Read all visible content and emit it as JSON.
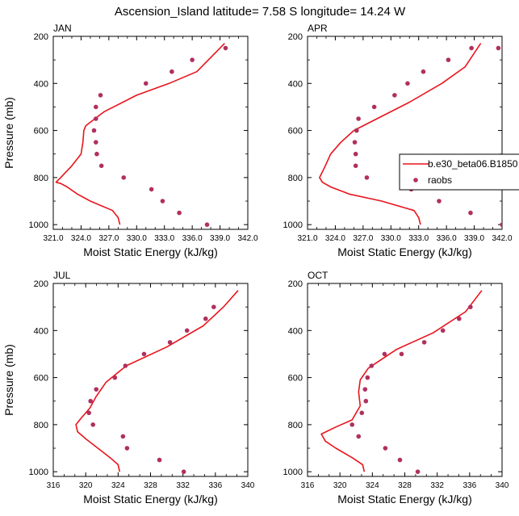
{
  "title": "Ascension_Island  latitude= 7.58 S longitude= 14.24 W",
  "chart_data": [
    {
      "type": "line",
      "panel": "JAN",
      "xlabel": "Moist Static Energy (kJ/kg)",
      "ylabel": "Pressure (mb)",
      "xlim": [
        321,
        342
      ],
      "ylim": [
        1020,
        200
      ],
      "xticks": [
        "321.0",
        "324.0",
        "327.0",
        "330.0",
        "333.0",
        "336.0",
        "339.0",
        "342.0"
      ],
      "yticks": [
        "200",
        "400",
        "600",
        "800",
        "1000"
      ],
      "series": [
        {
          "name": "b.e30_beta06.B1850",
          "kind": "line",
          "color": "#e8141c",
          "x": [
            328.2,
            328.0,
            327.4,
            325.0,
            323.6,
            322.5,
            321.8,
            321.3,
            321.8,
            323.0,
            324.0,
            324.2,
            324.3,
            324.5,
            326.5,
            330.0,
            333.5,
            336.5,
            338.5,
            339.5
          ],
          "y": [
            1000,
            970,
            940,
            900,
            870,
            840,
            825,
            820,
            800,
            750,
            700,
            650,
            600,
            580,
            520,
            450,
            400,
            350,
            270,
            230
          ]
        },
        {
          "name": "raobs",
          "kind": "scatter",
          "color": "#b03060",
          "x": [
            337.6,
            334.6,
            332.8,
            331.6,
            328.6,
            326.2,
            325.7,
            325.6,
            325.4,
            325.6,
            325.6,
            326.1,
            331.0,
            333.8,
            336.0,
            339.6
          ],
          "y": [
            1000,
            950,
            900,
            850,
            800,
            750,
            700,
            650,
            600,
            550,
            500,
            450,
            400,
            350,
            300,
            250
          ]
        }
      ]
    },
    {
      "type": "line",
      "panel": "APR",
      "xlabel": "Moist Static Energy (kJ/kg)",
      "ylabel": "",
      "xlim": [
        321,
        342
      ],
      "ylim": [
        1020,
        200
      ],
      "xticks": [
        "321.0",
        "324.0",
        "327.0",
        "330.0",
        "333.0",
        "336.0",
        "339.0",
        "342.0"
      ],
      "yticks": [
        "200",
        "400",
        "600",
        "800",
        "1000"
      ],
      "legend": {
        "placement": "right",
        "entries": [
          "b.e30_beta06.B1850",
          "raobs"
        ]
      },
      "series": [
        {
          "name": "b.e30_beta06.B1850",
          "kind": "line",
          "color": "#e8141c",
          "x": [
            333.2,
            333.0,
            332.5,
            329.0,
            325.5,
            323.5,
            322.6,
            322.3,
            322.8,
            323.5,
            324.6,
            326.0,
            328.5,
            332.0,
            335.5,
            338.0,
            339.7
          ],
          "y": [
            1000,
            970,
            940,
            900,
            870,
            840,
            820,
            800,
            760,
            700,
            650,
            600,
            550,
            480,
            400,
            330,
            230
          ]
        },
        {
          "name": "raobs",
          "kind": "scatter",
          "color": "#b03060",
          "x": [
            342.0,
            338.6,
            335.2,
            332.2,
            327.4,
            326.2,
            326.2,
            326.1,
            326.3,
            326.5,
            328.2,
            330.4,
            331.8,
            333.5,
            336.2,
            338.7,
            341.6
          ],
          "y": [
            1000,
            950,
            900,
            850,
            800,
            750,
            700,
            650,
            600,
            550,
            500,
            450,
            400,
            350,
            300,
            250,
            250
          ]
        }
      ]
    },
    {
      "type": "line",
      "panel": "JUL",
      "xlabel": "Moist Static Energy (kJ/kg)",
      "ylabel": "Pressure (mb)",
      "xlim": [
        316,
        340
      ],
      "ylim": [
        1020,
        200
      ],
      "xticks": [
        "316",
        "320",
        "324",
        "328",
        "332",
        "336",
        "340"
      ],
      "yticks": [
        "200",
        "400",
        "600",
        "800",
        "1000"
      ],
      "series": [
        {
          "name": "b.e30_beta06.B1850",
          "kind": "line",
          "color": "#e8141c",
          "x": [
            324.2,
            324.0,
            323.0,
            321.5,
            320.0,
            319.0,
            318.8,
            319.5,
            320.5,
            321.3,
            322.5,
            325.0,
            330.0,
            334.5,
            337.0,
            338.8
          ],
          "y": [
            1000,
            970,
            940,
            900,
            860,
            830,
            800,
            770,
            730,
            680,
            620,
            550,
            470,
            380,
            300,
            230
          ]
        },
        {
          "name": "raobs",
          "kind": "scatter",
          "color": "#b03060",
          "x": [
            332.1,
            329.1,
            325.1,
            324.6,
            320.9,
            320.4,
            320.6,
            321.3,
            323.6,
            324.9,
            327.2,
            330.4,
            332.5,
            334.8,
            335.8
          ],
          "y": [
            1000,
            950,
            900,
            850,
            800,
            750,
            700,
            650,
            600,
            550,
            500,
            450,
            400,
            350,
            300
          ]
        }
      ]
    },
    {
      "type": "line",
      "panel": "OCT",
      "xlabel": "Moist Static Energy (kJ/kg)",
      "ylabel": "",
      "xlim": [
        316,
        340
      ],
      "ylim": [
        1020,
        200
      ],
      "xticks": [
        "316",
        "320",
        "324",
        "328",
        "332",
        "336",
        "340"
      ],
      "yticks": [
        "200",
        "400",
        "600",
        "800",
        "1000"
      ],
      "series": [
        {
          "name": "b.e30_beta06.B1850",
          "kind": "line",
          "color": "#e8141c",
          "x": [
            323.0,
            322.8,
            321.5,
            319.5,
            318.2,
            317.7,
            319.5,
            321.5,
            322.5,
            322.3,
            322.5,
            323.5,
            327.0,
            331.5,
            335.5,
            337.5
          ],
          "y": [
            1000,
            970,
            940,
            900,
            870,
            840,
            810,
            780,
            720,
            660,
            610,
            560,
            480,
            410,
            320,
            230
          ]
        },
        {
          "name": "raobs",
          "kind": "scatter",
          "color": "#b03060",
          "x": [
            329.6,
            327.4,
            325.6,
            322.3,
            321.5,
            322.7,
            323.2,
            323.1,
            323.4,
            323.9,
            325.5,
            327.6,
            330.4,
            332.7,
            334.7,
            336.1
          ],
          "y": [
            1000,
            950,
            900,
            850,
            800,
            750,
            700,
            650,
            600,
            550,
            500,
            500,
            450,
            400,
            350,
            300
          ]
        }
      ]
    }
  ]
}
